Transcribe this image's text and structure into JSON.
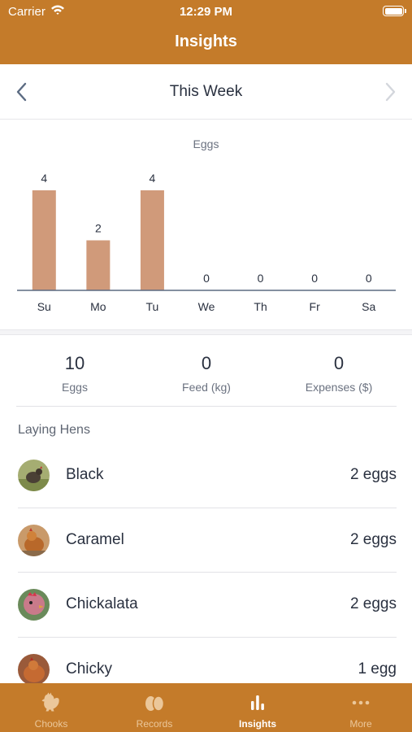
{
  "status_bar": {
    "carrier": "Carrier",
    "time": "12:29 PM"
  },
  "header": {
    "title": "Insights"
  },
  "period": {
    "title": "This Week"
  },
  "chart_data": {
    "type": "bar",
    "title": "Eggs",
    "categories": [
      "Su",
      "Mo",
      "Tu",
      "We",
      "Th",
      "Fr",
      "Sa"
    ],
    "values": [
      4,
      2,
      4,
      0,
      0,
      0,
      0
    ],
    "bar_color": "#d09a7a",
    "axis_color": "#5b6b82",
    "ylim": [
      0,
      4
    ],
    "grid": false
  },
  "stats": [
    {
      "value": "10",
      "label": "Eggs"
    },
    {
      "value": "0",
      "label": "Feed (kg)"
    },
    {
      "value": "0",
      "label": "Expenses ($)"
    }
  ],
  "laying_hens": {
    "title": "Laying Hens",
    "hens": [
      {
        "name": "Black",
        "eggs": "2 eggs"
      },
      {
        "name": "Caramel",
        "eggs": "2 eggs"
      },
      {
        "name": "Chickalata",
        "eggs": "2 eggs"
      },
      {
        "name": "Chicky",
        "eggs": "1 egg"
      }
    ]
  },
  "tabs": [
    {
      "label": "Chooks",
      "icon": "chicken-icon",
      "active": false
    },
    {
      "label": "Records",
      "icon": "eggs-icon",
      "active": false
    },
    {
      "label": "Insights",
      "icon": "bar-chart-icon",
      "active": true
    },
    {
      "label": "More",
      "icon": "more-icon",
      "active": false
    }
  ],
  "colors": {
    "brand": "#c47b2a",
    "tab_inactive": "#ebc79a",
    "text": "#2a3140"
  }
}
